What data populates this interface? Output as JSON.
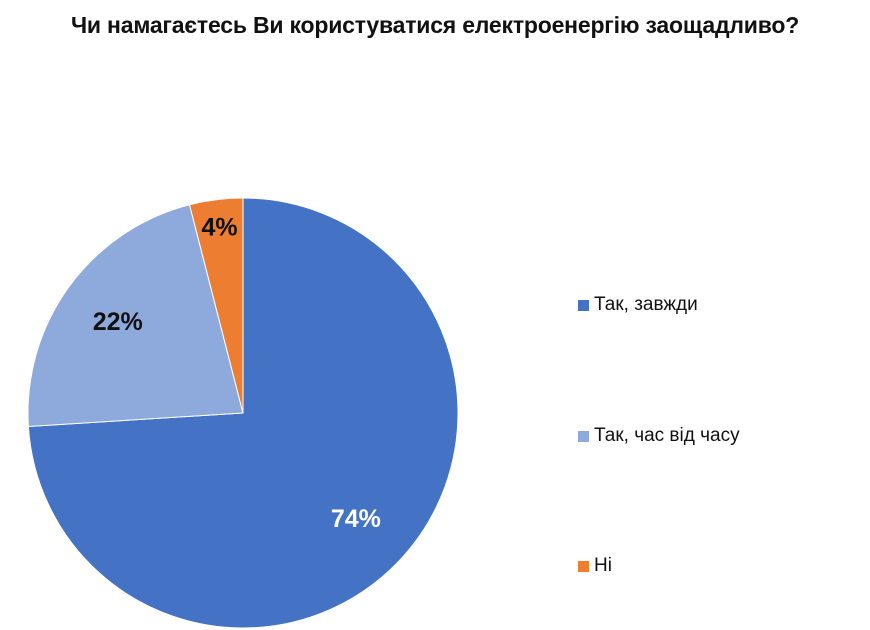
{
  "chart_data": {
    "type": "pie",
    "title": "Чи намагаєтесь Ви користуватися електроенергію заощадливо?",
    "slices": [
      {
        "label": "Так, завжди",
        "value": 74,
        "display": "74%",
        "color": "#4472C4",
        "label_color": "#ffffff"
      },
      {
        "label": "Так, час від часу",
        "value": 22,
        "display": "22%",
        "color": "#8EA9DB",
        "label_color": "#111111"
      },
      {
        "label": "Ні",
        "value": 4,
        "display": "4%",
        "color": "#ED7D31",
        "label_color": "#111111"
      }
    ],
    "start_angle_deg": 0,
    "direction": "clockwise",
    "legend_position": "right"
  }
}
